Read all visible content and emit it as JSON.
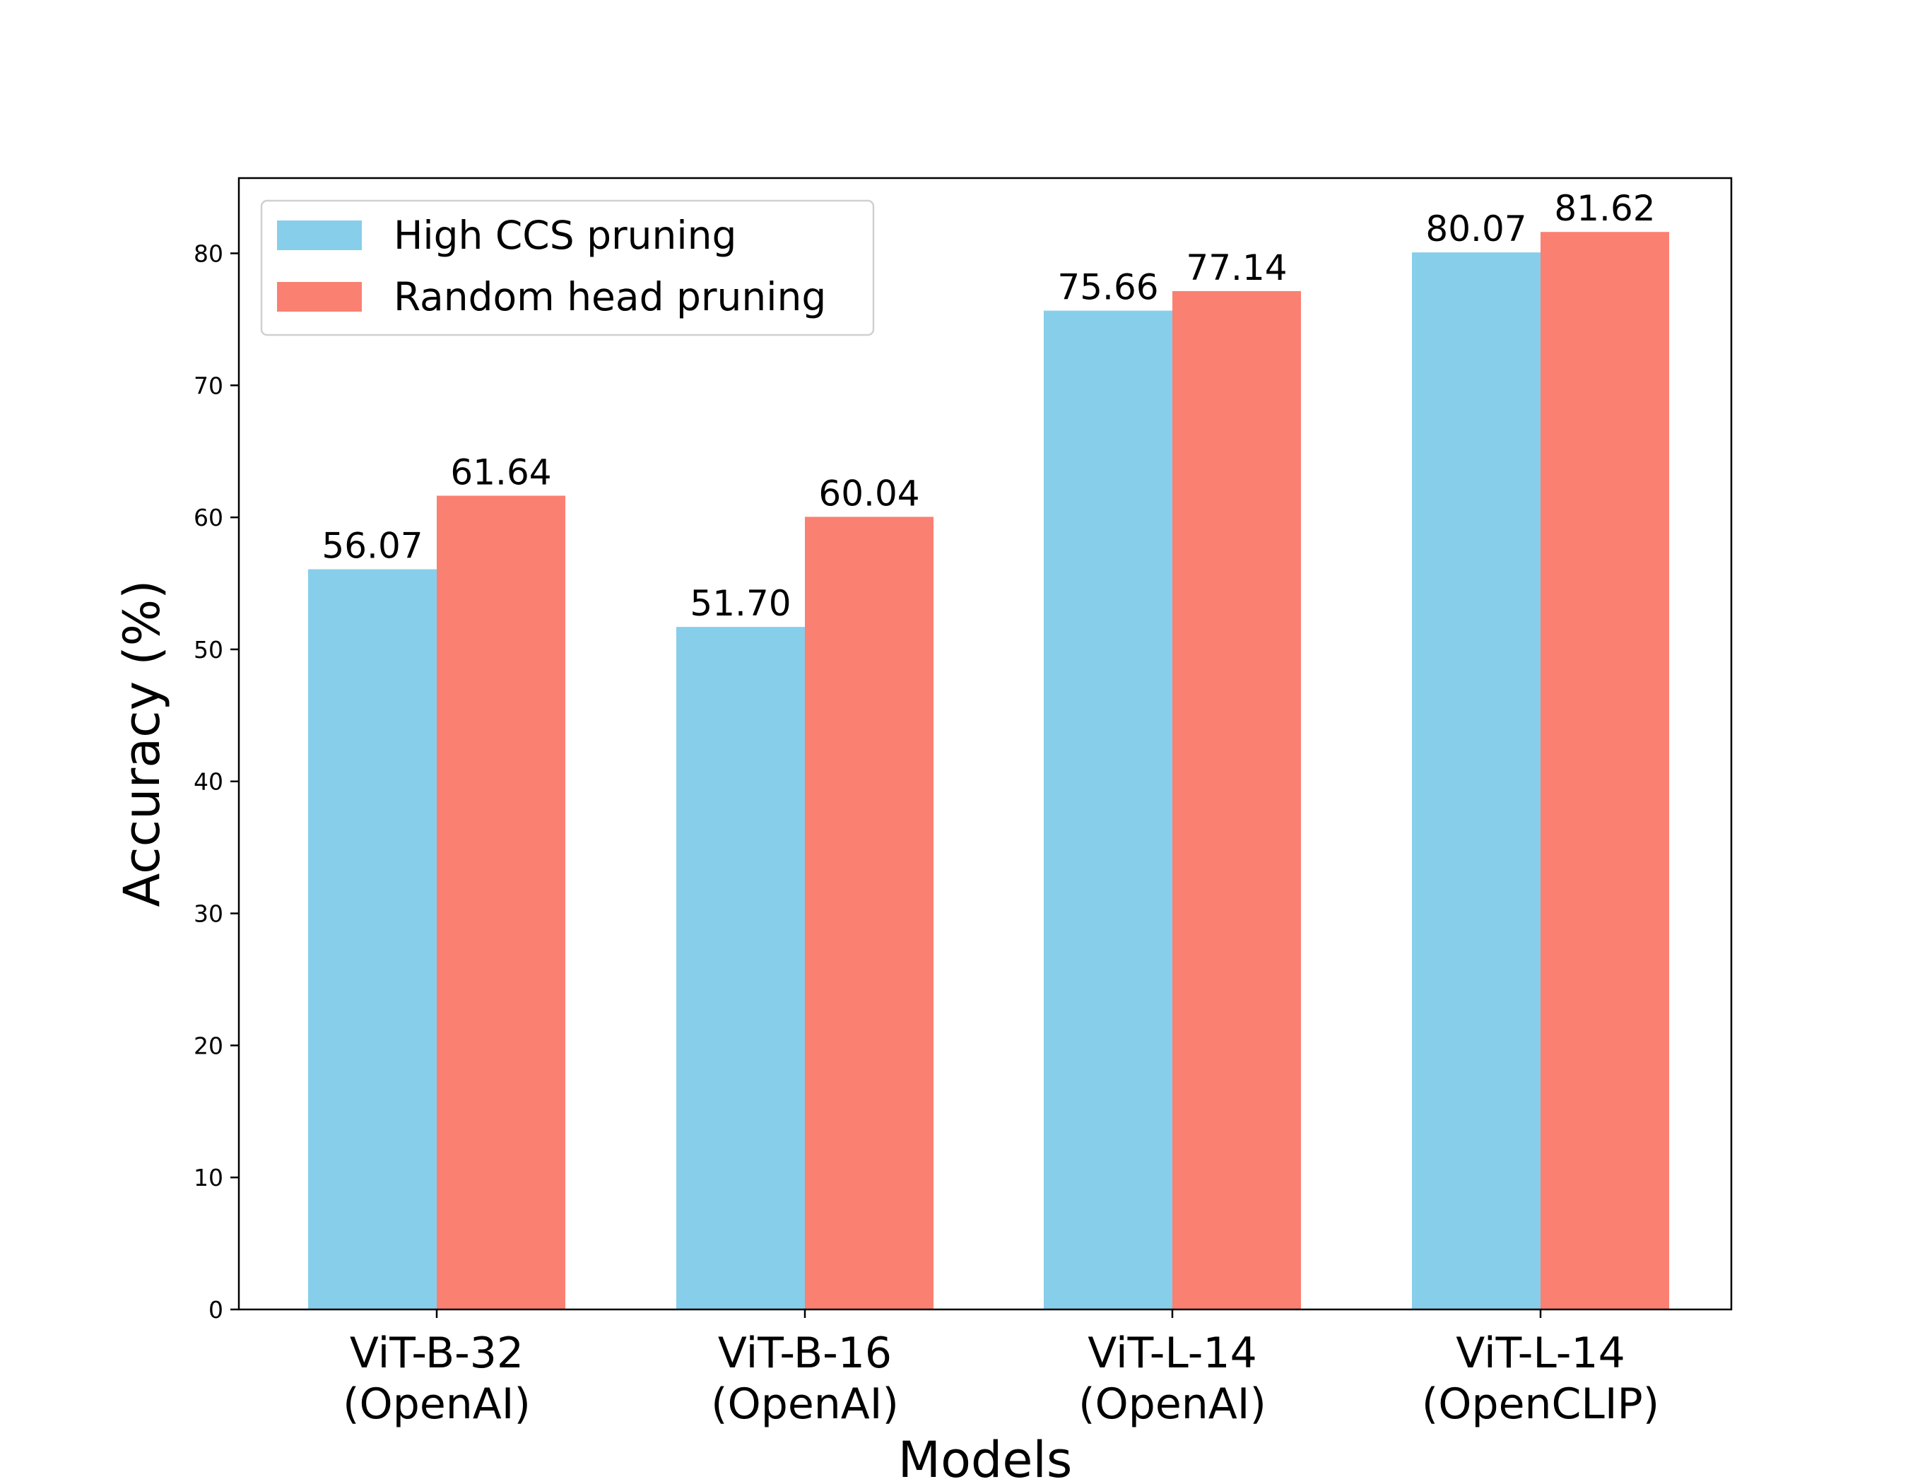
{
  "chart_data": {
    "type": "bar",
    "categories": [
      [
        "ViT-B-32",
        "(OpenAI)"
      ],
      [
        "ViT-B-16",
        "(OpenAI)"
      ],
      [
        "ViT-L-14",
        "(OpenAI)"
      ],
      [
        "ViT-L-14",
        "(OpenCLIP)"
      ]
    ],
    "series": [
      {
        "name": "High CCS pruning",
        "values": [
          56.07,
          51.7,
          75.66,
          80.07
        ],
        "labels": [
          "56.07",
          "51.70",
          "75.66",
          "80.07"
        ],
        "color": "#87ceeb"
      },
      {
        "name": "Random head pruning",
        "values": [
          61.64,
          60.04,
          77.14,
          81.62
        ],
        "labels": [
          "61.64",
          "60.04",
          "77.14",
          "81.62"
        ],
        "color": "#fa8072"
      }
    ],
    "xlabel": "Models",
    "ylabel": "Accuracy (%)",
    "ylim": [
      0,
      85.7
    ],
    "yticks": [
      "0",
      "10",
      "20",
      "30",
      "40",
      "50",
      "60",
      "70",
      "80"
    ],
    "grid": false,
    "legend_position": "top-left"
  }
}
